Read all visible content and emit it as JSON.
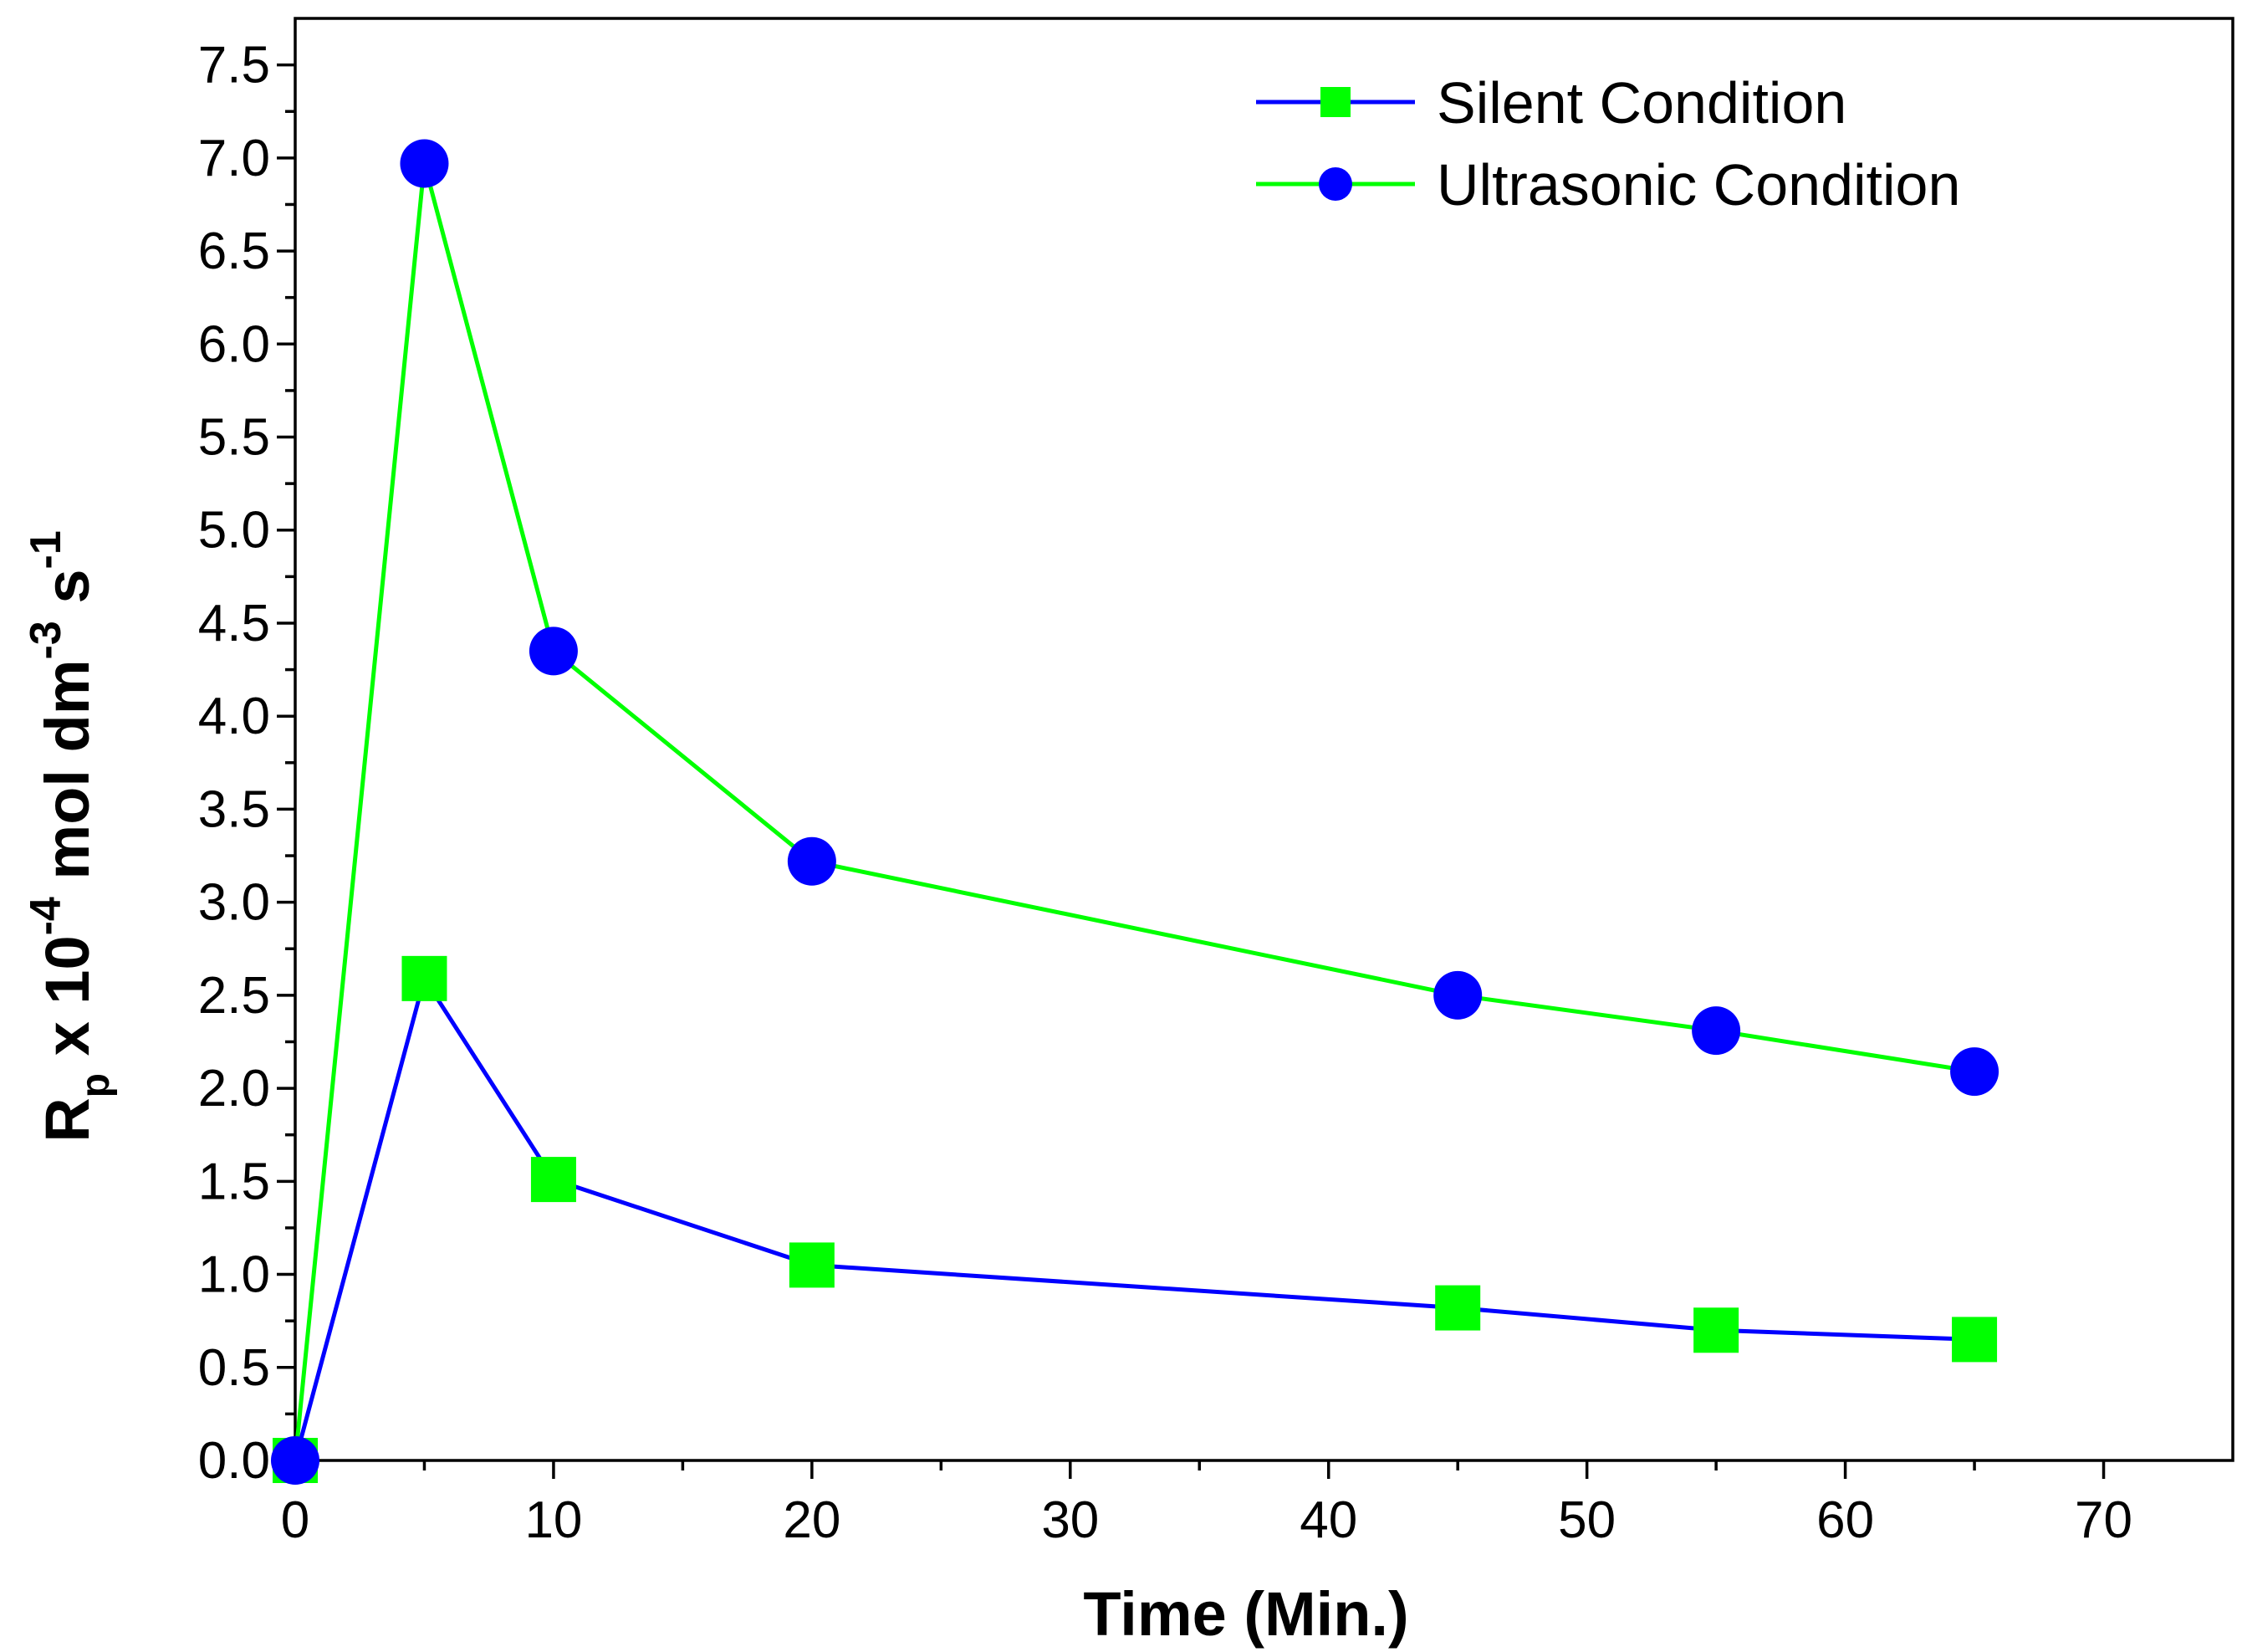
{
  "chart_data": {
    "type": "line",
    "title": "",
    "xlabel": "Time (Min.)",
    "ylabel": {
      "base": "R",
      "sub": "p",
      "mid": " x 10",
      "exp1": "-4",
      "mid2": " mol dm",
      "exp2": "-3",
      "mid3": " s",
      "exp3": "-1"
    },
    "xlim": [
      0,
      75
    ],
    "ylim": [
      0,
      7.75
    ],
    "x_ticks": [
      "0",
      "10",
      "20",
      "30",
      "40",
      "50",
      "60",
      "70"
    ],
    "x_tick_values": [
      0,
      10,
      20,
      30,
      40,
      50,
      60,
      70
    ],
    "y_ticks": [
      "0.0",
      "0.5",
      "1.0",
      "1.5",
      "2.0",
      "2.5",
      "3.0",
      "3.5",
      "4.0",
      "4.5",
      "5.0",
      "5.5",
      "6.0",
      "6.5",
      "7.0",
      "7.5"
    ],
    "y_tick_values": [
      0,
      0.5,
      1.0,
      1.5,
      2.0,
      2.5,
      3.0,
      3.5,
      4.0,
      4.5,
      5.0,
      5.5,
      6.0,
      6.5,
      7.0,
      7.5
    ],
    "x_minor_step": 5,
    "y_minor_step": 0.25,
    "grid": false,
    "legend_position": "top-right",
    "series": [
      {
        "name": "Silent Condition",
        "line_color": "#0000ff",
        "marker": "square",
        "marker_color": "#00ff00",
        "x": [
          0,
          5,
          10,
          20,
          45,
          55,
          65
        ],
        "y": [
          0,
          2.59,
          1.51,
          1.05,
          0.82,
          0.7,
          0.65
        ]
      },
      {
        "name": "Ultrasonic Condition",
        "line_color": "#00ff00",
        "marker": "circle",
        "marker_color": "#0000ff",
        "x": [
          0,
          5,
          10,
          20,
          45,
          55,
          65
        ],
        "y": [
          0,
          6.97,
          4.35,
          3.22,
          2.5,
          2.31,
          2.09
        ]
      }
    ]
  }
}
